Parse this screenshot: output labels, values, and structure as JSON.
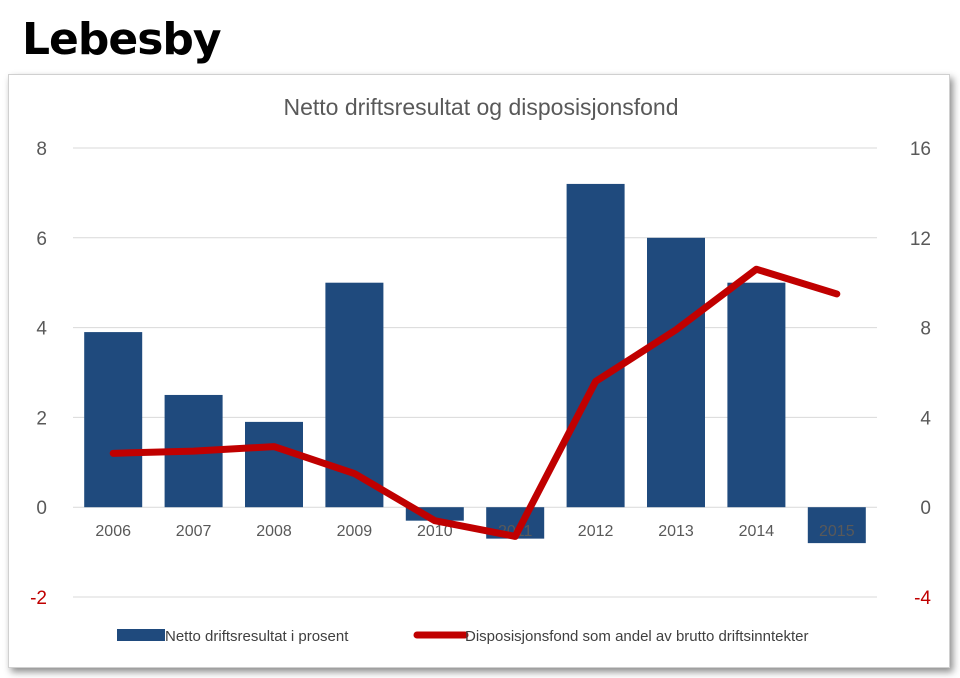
{
  "page_title": "Lebesby",
  "chart_data": {
    "type": "bar",
    "title": "Netto driftsresultat og disposisjonsfond",
    "categories": [
      "2006",
      "2007",
      "2008",
      "2009",
      "2010",
      "2011",
      "2012",
      "2013",
      "2014",
      "2015"
    ],
    "series": [
      {
        "name": "Netto driftsresultat i prosent",
        "type": "bar",
        "axis": "left",
        "color": "#1F4A7D",
        "values": [
          3.9,
          2.5,
          1.9,
          5.0,
          -0.3,
          -0.7,
          7.2,
          6.0,
          5.0,
          -0.8
        ]
      },
      {
        "name": "Disposisjonsfond som andel av brutto driftsinntekter",
        "type": "line",
        "axis": "right",
        "color": "#C00000",
        "values": [
          2.4,
          2.5,
          2.7,
          1.5,
          -0.6,
          -1.3,
          5.6,
          7.9,
          10.6,
          9.5
        ]
      }
    ],
    "y_left": {
      "min": -2,
      "max": 8,
      "ticks": [
        "8",
        "6",
        "4",
        "2",
        "0",
        "-2"
      ]
    },
    "y_right": {
      "min": -4,
      "max": 16,
      "ticks": [
        "16",
        "12",
        "8",
        "4",
        "0",
        "-4"
      ]
    },
    "negative_tick_color": "#C00000",
    "grid": true,
    "legend_position": "bottom"
  }
}
